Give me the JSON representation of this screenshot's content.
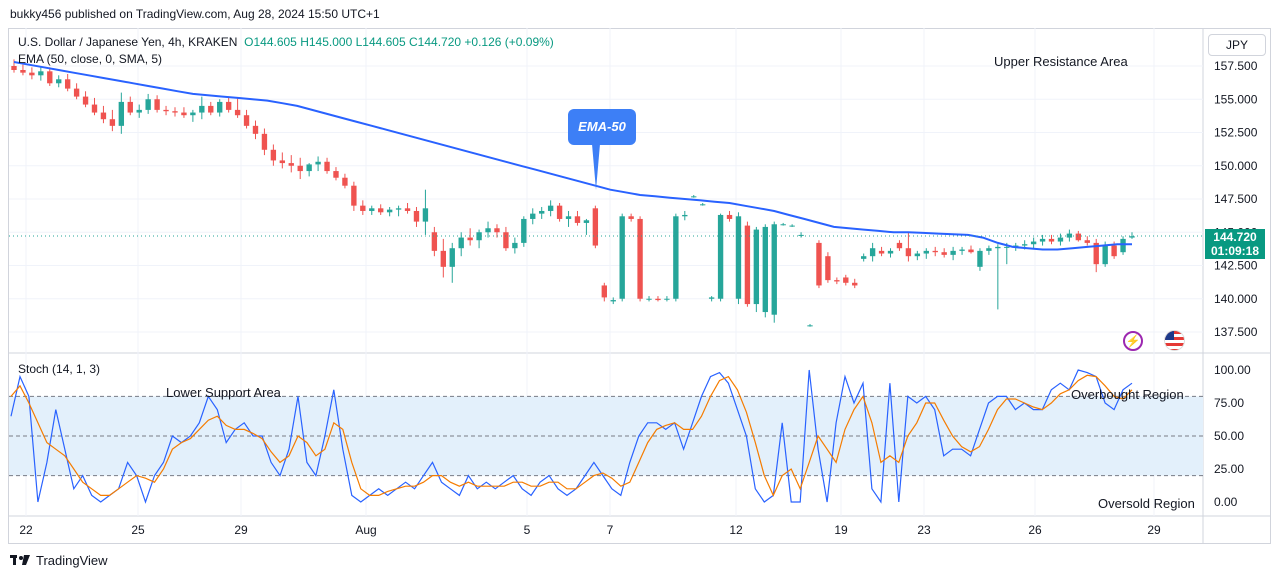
{
  "header": {
    "published": "bukky456 published on TradingView.com, Aug 28, 2024 15:50 UTC+1"
  },
  "legend": {
    "symbol": "U.S. Dollar / Japanese Yen, 4h, KRAKEN",
    "open": "O144.605",
    "high": "H145.000",
    "low": "L144.605",
    "close": "C144.720",
    "change": "+0.126 (+0.09%)",
    "ema": "EMA (50, close, 0, SMA, 5)",
    "stoch": "Stoch (14, 1, 3)"
  },
  "currency": "JPY",
  "last_price": {
    "value": "144.720",
    "countdown": "01:09:18"
  },
  "annotations": {
    "upper_resistance": "Upper Resistance Area",
    "lower_support": "Lower Support Area",
    "overbought": "Overbought Region",
    "oversold": "Oversold Region",
    "ema_callout": "EMA-50"
  },
  "footer": {
    "brand": "TradingView"
  },
  "colors": {
    "up": "#26a69a",
    "down": "#ef5350",
    "ema": "#2962ff",
    "stoch_k": "#2962ff",
    "stoch_d": "#f57c00",
    "band": "#e3f0fb"
  },
  "chart_data": [
    {
      "type": "candlestick",
      "title": "U.S. Dollar / Japanese Yen, 4h, KRAKEN",
      "y_ticks": [
        157.5,
        155.0,
        152.5,
        150.0,
        147.5,
        145.0,
        142.5,
        140.0,
        137.5
      ],
      "y_tick_labels": [
        "157.500",
        "155.000",
        "152.500",
        "150.000",
        "147.500",
        "145.000",
        "142.500",
        "140.000",
        "137.500"
      ],
      "ylim": [
        136.0,
        159.5
      ],
      "x_tick_labels": [
        "22",
        "25",
        "29",
        "Aug",
        "5",
        "7",
        "12",
        "19",
        "23",
        "26",
        "29"
      ],
      "candles": [
        [
          157.5,
          158.0,
          157.0,
          157.2
        ],
        [
          157.2,
          157.6,
          156.8,
          157.0
        ],
        [
          157.0,
          157.4,
          156.5,
          156.8
        ],
        [
          156.8,
          157.5,
          156.4,
          157.1
        ],
        [
          157.1,
          157.4,
          156.0,
          156.2
        ],
        [
          156.2,
          156.8,
          155.9,
          156.5
        ],
        [
          156.5,
          156.9,
          155.6,
          155.8
        ],
        [
          155.8,
          156.2,
          155.0,
          155.2
        ],
        [
          155.2,
          155.6,
          154.4,
          154.6
        ],
        [
          154.6,
          155.1,
          153.8,
          154.0
        ],
        [
          154.0,
          154.5,
          153.2,
          153.5
        ],
        [
          153.5,
          154.2,
          152.6,
          153.0
        ],
        [
          153.0,
          155.5,
          152.4,
          154.8
        ],
        [
          154.8,
          155.2,
          153.8,
          154.0
        ],
        [
          154.0,
          154.6,
          153.6,
          154.2
        ],
        [
          154.2,
          155.4,
          153.9,
          155.0
        ],
        [
          155.0,
          155.3,
          154.0,
          154.2
        ],
        [
          154.2,
          154.5,
          153.8,
          154.1
        ],
        [
          154.1,
          154.4,
          153.7,
          154.0
        ],
        [
          154.0,
          154.4,
          153.6,
          153.8
        ],
        [
          153.8,
          154.2,
          153.3,
          154.0
        ],
        [
          154.0,
          155.2,
          153.5,
          154.5
        ],
        [
          154.5,
          154.8,
          153.8,
          154.0
        ],
        [
          154.0,
          155.0,
          153.7,
          154.8
        ],
        [
          154.8,
          155.2,
          154.0,
          154.2
        ],
        [
          154.2,
          155.1,
          153.6,
          153.8
        ],
        [
          153.8,
          154.2,
          152.8,
          153.0
        ],
        [
          153.0,
          153.4,
          152.0,
          152.4
        ],
        [
          152.4,
          152.8,
          150.8,
          151.2
        ],
        [
          151.2,
          151.6,
          150.0,
          150.4
        ],
        [
          150.4,
          151.0,
          149.8,
          150.2
        ],
        [
          150.2,
          150.8,
          149.5,
          150.0
        ],
        [
          150.0,
          150.6,
          149.0,
          149.6
        ],
        [
          149.6,
          150.2,
          149.2,
          150.1
        ],
        [
          150.1,
          150.7,
          149.6,
          150.3
        ],
        [
          150.3,
          150.6,
          149.4,
          149.6
        ],
        [
          149.6,
          149.9,
          148.9,
          149.1
        ],
        [
          149.1,
          149.4,
          148.3,
          148.5
        ],
        [
          148.5,
          148.8,
          146.6,
          147.0
        ],
        [
          147.0,
          147.4,
          146.3,
          146.6
        ],
        [
          146.6,
          147.0,
          146.3,
          146.8
        ],
        [
          146.8,
          147.1,
          146.3,
          146.5
        ],
        [
          146.5,
          146.9,
          146.2,
          146.7
        ],
        [
          146.7,
          147.0,
          146.2,
          146.8
        ],
        [
          146.8,
          147.2,
          146.4,
          146.6
        ],
        [
          146.6,
          146.9,
          145.4,
          145.8
        ],
        [
          145.8,
          148.2,
          144.8,
          146.8
        ],
        [
          145.0,
          145.4,
          143.2,
          143.6
        ],
        [
          143.6,
          144.5,
          141.6,
          142.4
        ],
        [
          142.4,
          144.2,
          141.2,
          143.8
        ],
        [
          143.8,
          145.0,
          143.2,
          144.6
        ],
        [
          144.6,
          145.3,
          144.0,
          144.4
        ],
        [
          144.4,
          145.2,
          143.8,
          145.0
        ],
        [
          145.0,
          145.8,
          144.6,
          145.3
        ],
        [
          145.3,
          145.6,
          144.6,
          145.0
        ],
        [
          145.0,
          145.4,
          143.6,
          143.8
        ],
        [
          143.8,
          144.6,
          143.4,
          144.2
        ],
        [
          144.2,
          146.2,
          143.9,
          146.0
        ],
        [
          146.0,
          146.8,
          145.6,
          146.4
        ],
        [
          146.4,
          146.9,
          146.0,
          146.6
        ],
        [
          146.6,
          147.4,
          146.2,
          147.0
        ],
        [
          147.0,
          147.2,
          145.8,
          146.0
        ],
        [
          146.0,
          146.6,
          145.4,
          146.2
        ],
        [
          146.2,
          146.6,
          145.5,
          145.7
        ],
        [
          145.7,
          146.0,
          144.8,
          145.9
        ],
        [
          146.8,
          147.0,
          143.8,
          144.0
        ],
        [
          141.0,
          141.2,
          139.8,
          140.1
        ],
        [
          139.8,
          140.1,
          139.6,
          139.9
        ],
        [
          140.0,
          146.4,
          139.8,
          146.2
        ],
        [
          146.2,
          146.4,
          145.8,
          146.0
        ],
        [
          146.0,
          146.2,
          139.8,
          140.0
        ],
        [
          140.0,
          140.2,
          139.8,
          140.0
        ],
        [
          140.0,
          140.2,
          139.8,
          139.9
        ],
        [
          140.0,
          140.2,
          139.8,
          140.0
        ],
        [
          140.0,
          146.4,
          139.8,
          146.2
        ],
        [
          146.2,
          146.6,
          145.9,
          146.3
        ],
        [
          147.7,
          147.8,
          147.6,
          147.7
        ],
        [
          147.1,
          147.2,
          147.0,
          147.1
        ],
        [
          140.0,
          140.2,
          139.8,
          140.1
        ],
        [
          140.0,
          146.4,
          139.8,
          146.3
        ],
        [
          146.3,
          146.6,
          145.8,
          146.0
        ],
        [
          140.0,
          146.5,
          139.6,
          146.2
        ],
        [
          145.5,
          145.8,
          139.4,
          139.6
        ],
        [
          139.6,
          145.4,
          139.0,
          145.2
        ],
        [
          139.0,
          145.6,
          138.6,
          145.4
        ],
        [
          138.8,
          145.8,
          138.2,
          145.6
        ],
        [
          145.6,
          145.7,
          145.5,
          145.6
        ],
        [
          145.5,
          145.6,
          145.4,
          145.5
        ],
        [
          144.8,
          145.0,
          144.6,
          144.8
        ],
        [
          138.0,
          138.1,
          137.9,
          138.0
        ],
        [
          144.2,
          144.4,
          140.8,
          141.0
        ],
        [
          143.2,
          143.5,
          141.2,
          141.4
        ],
        [
          141.4,
          141.6,
          141.1,
          141.3
        ],
        [
          141.6,
          141.8,
          141.0,
          141.2
        ],
        [
          141.2,
          141.5,
          140.8,
          141.0
        ],
        [
          143.0,
          143.4,
          142.8,
          143.2
        ],
        [
          143.2,
          144.2,
          142.8,
          143.8
        ],
        [
          143.6,
          143.9,
          143.2,
          143.4
        ],
        [
          143.4,
          143.8,
          143.1,
          143.6
        ],
        [
          144.2,
          144.4,
          143.6,
          143.8
        ],
        [
          143.8,
          145.0,
          142.8,
          143.2
        ],
        [
          143.2,
          143.6,
          142.9,
          143.4
        ],
        [
          143.4,
          143.8,
          143.0,
          143.6
        ],
        [
          143.6,
          143.9,
          143.2,
          143.5
        ],
        [
          143.5,
          143.8,
          143.1,
          143.3
        ],
        [
          143.3,
          143.9,
          142.9,
          143.6
        ],
        [
          143.6,
          143.9,
          143.3,
          143.7
        ],
        [
          143.7,
          144.0,
          143.4,
          143.5
        ],
        [
          142.4,
          143.8,
          142.1,
          143.6
        ],
        [
          143.6,
          144.0,
          143.3,
          143.8
        ],
        [
          143.8,
          144.1,
          139.2,
          143.9
        ],
        [
          143.9,
          144.2,
          142.6,
          143.9
        ],
        [
          143.9,
          144.2,
          143.6,
          144.0
        ],
        [
          144.0,
          144.4,
          143.7,
          144.1
        ],
        [
          144.1,
          144.6,
          143.8,
          144.3
        ],
        [
          144.3,
          144.8,
          144.0,
          144.5
        ],
        [
          144.5,
          144.8,
          144.1,
          144.3
        ],
        [
          144.3,
          144.9,
          144.0,
          144.6
        ],
        [
          144.6,
          145.2,
          144.3,
          144.9
        ],
        [
          144.9,
          145.1,
          144.3,
          144.4
        ],
        [
          144.4,
          144.7,
          144.0,
          144.2
        ],
        [
          144.2,
          144.5,
          142.0,
          142.6
        ],
        [
          142.6,
          144.3,
          142.4,
          144.0
        ],
        [
          144.0,
          144.3,
          143.0,
          143.2
        ],
        [
          143.5,
          144.7,
          143.3,
          144.5
        ],
        [
          144.6,
          145.0,
          144.5,
          144.7
        ]
      ],
      "ema50": [
        157.8,
        157.6,
        157.4,
        157.2,
        157.0,
        156.8,
        156.6,
        156.4,
        156.2,
        156.0,
        155.8,
        155.6,
        155.4,
        155.3,
        155.2,
        155.1,
        155.0,
        154.9,
        154.7,
        154.5,
        154.2,
        153.9,
        153.6,
        153.3,
        153.0,
        152.7,
        152.4,
        152.1,
        151.8,
        151.5,
        151.2,
        150.9,
        150.6,
        150.3,
        150.0,
        149.7,
        149.4,
        149.1,
        148.8,
        148.5,
        148.2,
        148.0,
        147.8,
        147.7,
        147.6,
        147.5,
        147.4,
        147.3,
        147.2,
        147.0,
        146.8,
        146.6,
        146.3,
        146.0,
        145.7,
        145.4,
        145.3,
        145.2,
        145.1,
        145.0,
        145.0,
        144.95,
        144.9,
        144.85,
        144.8,
        144.6,
        144.2,
        143.9,
        143.8,
        143.7,
        143.7,
        143.8,
        143.9,
        144.0,
        144.1,
        144.1
      ],
      "series": [
        {
          "name": "EMA (50, close, 0, SMA, 5)"
        }
      ]
    },
    {
      "type": "line",
      "title": "Stoch (14, 1, 3)",
      "y_ticks": [
        100,
        75,
        50,
        25,
        0
      ],
      "y_tick_labels": [
        "100.00",
        "75.00",
        "50.00",
        "25.00",
        "0.00"
      ],
      "ylim": [
        -12,
        108
      ],
      "bands": [
        80,
        50,
        20
      ],
      "series": [
        {
          "name": "%K",
          "values": [
            65,
            95,
            80,
            0,
            30,
            70,
            40,
            10,
            20,
            5,
            0,
            5,
            10,
            30,
            20,
            0,
            20,
            30,
            50,
            45,
            50,
            60,
            80,
            70,
            45,
            55,
            60,
            50,
            50,
            30,
            20,
            40,
            80,
            30,
            20,
            50,
            85,
            40,
            5,
            0,
            5,
            10,
            5,
            10,
            15,
            10,
            20,
            30,
            15,
            10,
            5,
            20,
            10,
            15,
            10,
            15,
            20,
            10,
            5,
            15,
            20,
            10,
            5,
            10,
            20,
            30,
            20,
            10,
            5,
            30,
            50,
            60,
            60,
            55,
            60,
            40,
            60,
            80,
            95,
            98,
            90,
            70,
            50,
            10,
            0,
            5,
            60,
            0,
            0,
            100,
            40,
            0,
            60,
            95,
            75,
            90,
            10,
            0,
            90,
            0,
            80,
            75,
            80,
            70,
            35,
            40,
            40,
            35,
            55,
            75,
            80,
            80,
            70,
            75,
            70,
            70,
            85,
            90,
            85,
            100,
            98,
            95,
            75,
            70,
            85,
            90
          ]
        },
        {
          "name": "%D",
          "values": [
            80,
            88,
            75,
            60,
            45,
            40,
            35,
            25,
            15,
            10,
            5,
            5,
            10,
            15,
            20,
            18,
            15,
            25,
            40,
            45,
            48,
            55,
            62,
            65,
            58,
            55,
            55,
            52,
            48,
            38,
            30,
            35,
            50,
            45,
            35,
            40,
            60,
            55,
            30,
            10,
            5,
            5,
            8,
            10,
            12,
            12,
            15,
            20,
            20,
            15,
            12,
            15,
            12,
            12,
            12,
            12,
            15,
            15,
            12,
            12,
            15,
            15,
            10,
            10,
            15,
            20,
            22,
            18,
            12,
            15,
            30,
            45,
            55,
            58,
            60,
            55,
            55,
            65,
            80,
            92,
            95,
            85,
            68,
            45,
            20,
            5,
            20,
            25,
            10,
            30,
            50,
            40,
            30,
            55,
            70,
            80,
            60,
            30,
            35,
            30,
            50,
            60,
            75,
            75,
            62,
            50,
            42,
            38,
            42,
            55,
            70,
            78,
            78,
            75,
            72,
            70,
            75,
            82,
            85,
            92,
            96,
            95,
            88,
            80,
            78,
            85
          ]
        }
      ]
    }
  ]
}
